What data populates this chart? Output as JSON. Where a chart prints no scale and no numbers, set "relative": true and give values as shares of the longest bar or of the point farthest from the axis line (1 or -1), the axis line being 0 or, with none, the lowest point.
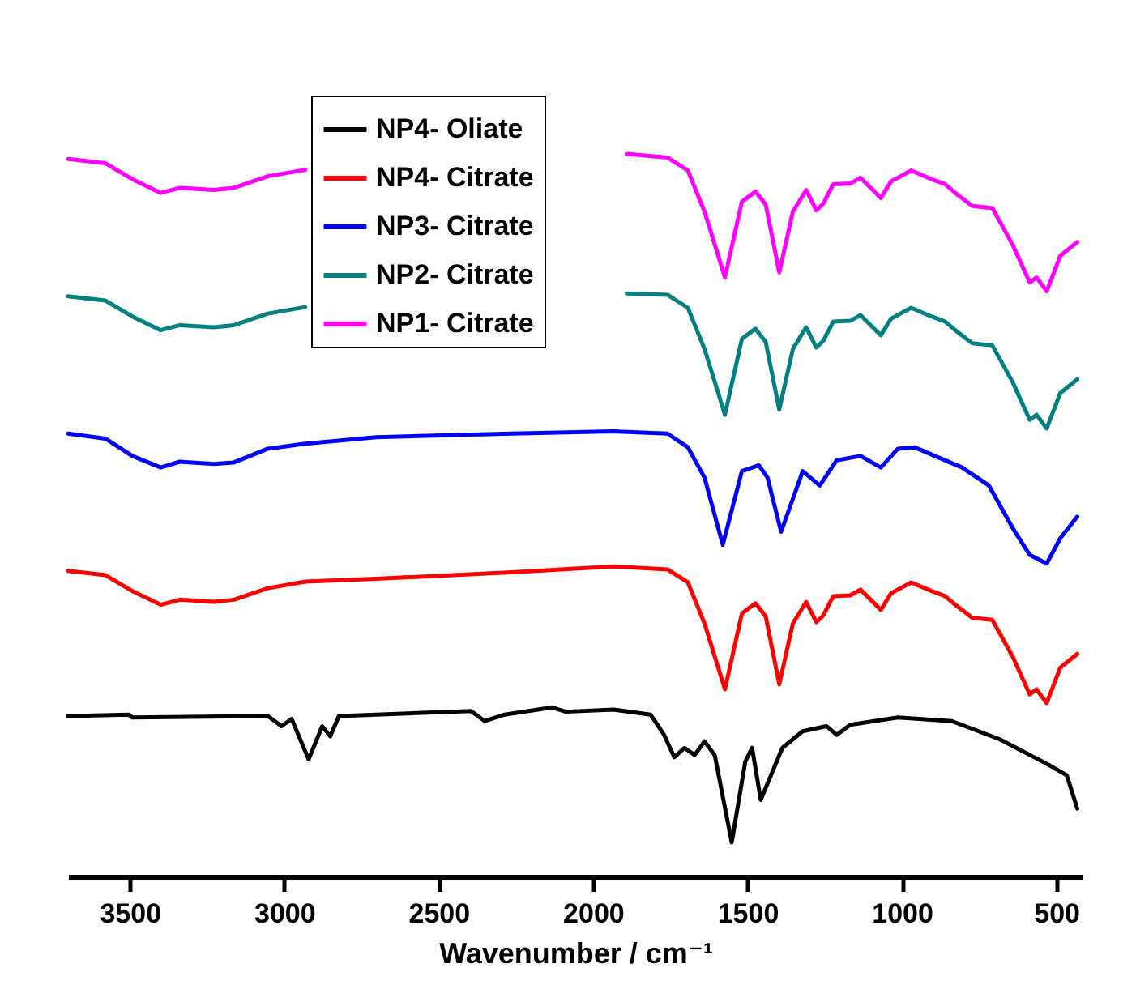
{
  "chart_data": {
    "type": "line",
    "xlabel": "Wavenumber / cm⁻¹",
    "relative": true,
    "legend": "top",
    "xlim": [
      3700,
      415
    ],
    "xticks": [
      3500,
      3000,
      2500,
      2000,
      1500,
      1000,
      500
    ],
    "series": [
      {
        "name": "NP4- Oliate",
        "color": "#000000",
        "x": [
          3700,
          3503,
          3492,
          3053,
          3009,
          2976,
          2921,
          2877,
          2851,
          2823,
          2395,
          2351,
          2286,
          2132,
          2088,
          1934,
          1814,
          1770,
          1737,
          1704,
          1671,
          1639,
          1606,
          1551,
          1507,
          1485,
          1457,
          1387,
          1321,
          1244,
          1211,
          1167,
          1013,
          838,
          684,
          531,
          466,
          432
        ],
        "values": [
          0.222,
          0.224,
          0.22,
          0.222,
          0.208,
          0.218,
          0.162,
          0.208,
          0.194,
          0.222,
          0.229,
          0.215,
          0.224,
          0.234,
          0.228,
          0.231,
          0.224,
          0.196,
          0.165,
          0.178,
          0.168,
          0.187,
          0.168,
          0.047,
          0.159,
          0.178,
          0.106,
          0.178,
          0.201,
          0.208,
          0.196,
          0.21,
          0.22,
          0.215,
          0.19,
          0.156,
          0.14,
          0.094
        ]
      },
      {
        "name": "NP4- Citrate",
        "color": "#ff0000",
        "x": [
          3700,
          3579,
          3492,
          3400,
          3338,
          3228,
          3163,
          3053,
          2932,
          2703,
          2264,
          1934,
          1759,
          1693,
          1639,
          1573,
          1518,
          1474,
          1441,
          1397,
          1353,
          1310,
          1277,
          1255,
          1222,
          1167,
          1134,
          1101,
          1068,
          1035,
          970,
          904,
          860,
          827,
          772,
          707,
          641,
          586,
          564,
          531,
          487,
          432
        ],
        "values": [
          0.423,
          0.417,
          0.395,
          0.376,
          0.383,
          0.38,
          0.383,
          0.399,
          0.408,
          0.412,
          0.421,
          0.429,
          0.425,
          0.407,
          0.35,
          0.259,
          0.364,
          0.378,
          0.36,
          0.266,
          0.35,
          0.38,
          0.352,
          0.361,
          0.388,
          0.389,
          0.397,
          0.383,
          0.369,
          0.392,
          0.407,
          0.395,
          0.388,
          0.376,
          0.358,
          0.355,
          0.304,
          0.252,
          0.259,
          0.24,
          0.289,
          0.308
        ]
      },
      {
        "name": "NP3- Citrate",
        "color": "#0000ff",
        "x": [
          3700,
          3579,
          3492,
          3400,
          3338,
          3228,
          3163,
          3053,
          2932,
          2703,
          2264,
          1934,
          1759,
          1693,
          1639,
          1580,
          1518,
          1463,
          1435,
          1391,
          1321,
          1266,
          1211,
          1134,
          1068,
          1013,
          959,
          893,
          805,
          718,
          641,
          586,
          531,
          487,
          432
        ],
        "values": [
          0.613,
          0.606,
          0.582,
          0.566,
          0.574,
          0.571,
          0.573,
          0.592,
          0.599,
          0.608,
          0.613,
          0.616,
          0.613,
          0.594,
          0.552,
          0.459,
          0.561,
          0.569,
          0.552,
          0.477,
          0.561,
          0.541,
          0.576,
          0.582,
          0.566,
          0.592,
          0.594,
          0.582,
          0.566,
          0.541,
          0.482,
          0.445,
          0.433,
          0.468,
          0.498
        ]
      },
      {
        "name": "NP2- Citrate",
        "color": "#008080",
        "x": [
          3700,
          3579,
          3492,
          3400,
          3338,
          3228,
          3163,
          3053,
          2932,
          2400,
          1891,
          1759,
          1693,
          1639,
          1573,
          1518,
          1474,
          1441,
          1397,
          1353,
          1310,
          1277,
          1255,
          1222,
          1167,
          1134,
          1101,
          1068,
          1035,
          970,
          904,
          860,
          827,
          772,
          707,
          641,
          586,
          564,
          531,
          487,
          432
        ],
        "values": [
          0.803,
          0.797,
          0.775,
          0.756,
          0.763,
          0.76,
          0.763,
          0.779,
          0.788,
          null,
          0.807,
          0.805,
          0.787,
          0.73,
          0.639,
          0.744,
          0.758,
          0.74,
          0.646,
          0.73,
          0.76,
          0.732,
          0.741,
          0.768,
          0.769,
          0.777,
          0.763,
          0.749,
          0.772,
          0.787,
          0.775,
          0.768,
          0.756,
          0.738,
          0.735,
          0.684,
          0.632,
          0.639,
          0.62,
          0.669,
          0.688
        ]
      },
      {
        "name": "NP1- Citrate",
        "color": "#ff00ff",
        "x": [
          3700,
          3579,
          3492,
          3400,
          3338,
          3228,
          3163,
          3053,
          2932,
          2400,
          1891,
          1759,
          1693,
          1639,
          1573,
          1518,
          1474,
          1441,
          1397,
          1353,
          1310,
          1277,
          1255,
          1222,
          1167,
          1134,
          1101,
          1068,
          1035,
          970,
          904,
          860,
          827,
          772,
          707,
          641,
          586,
          564,
          531,
          487,
          432
        ],
        "values": [
          0.993,
          0.987,
          0.965,
          0.946,
          0.953,
          0.95,
          0.953,
          0.969,
          0.978,
          null,
          1,
          0.995,
          0.977,
          0.92,
          0.829,
          0.934,
          0.948,
          0.93,
          0.836,
          0.92,
          0.95,
          0.922,
          0.931,
          0.958,
          0.959,
          0.967,
          0.953,
          0.939,
          0.962,
          0.977,
          0.965,
          0.958,
          0.946,
          0.928,
          0.925,
          0.874,
          0.822,
          0.829,
          0.81,
          0.859,
          0.878
        ]
      }
    ]
  }
}
